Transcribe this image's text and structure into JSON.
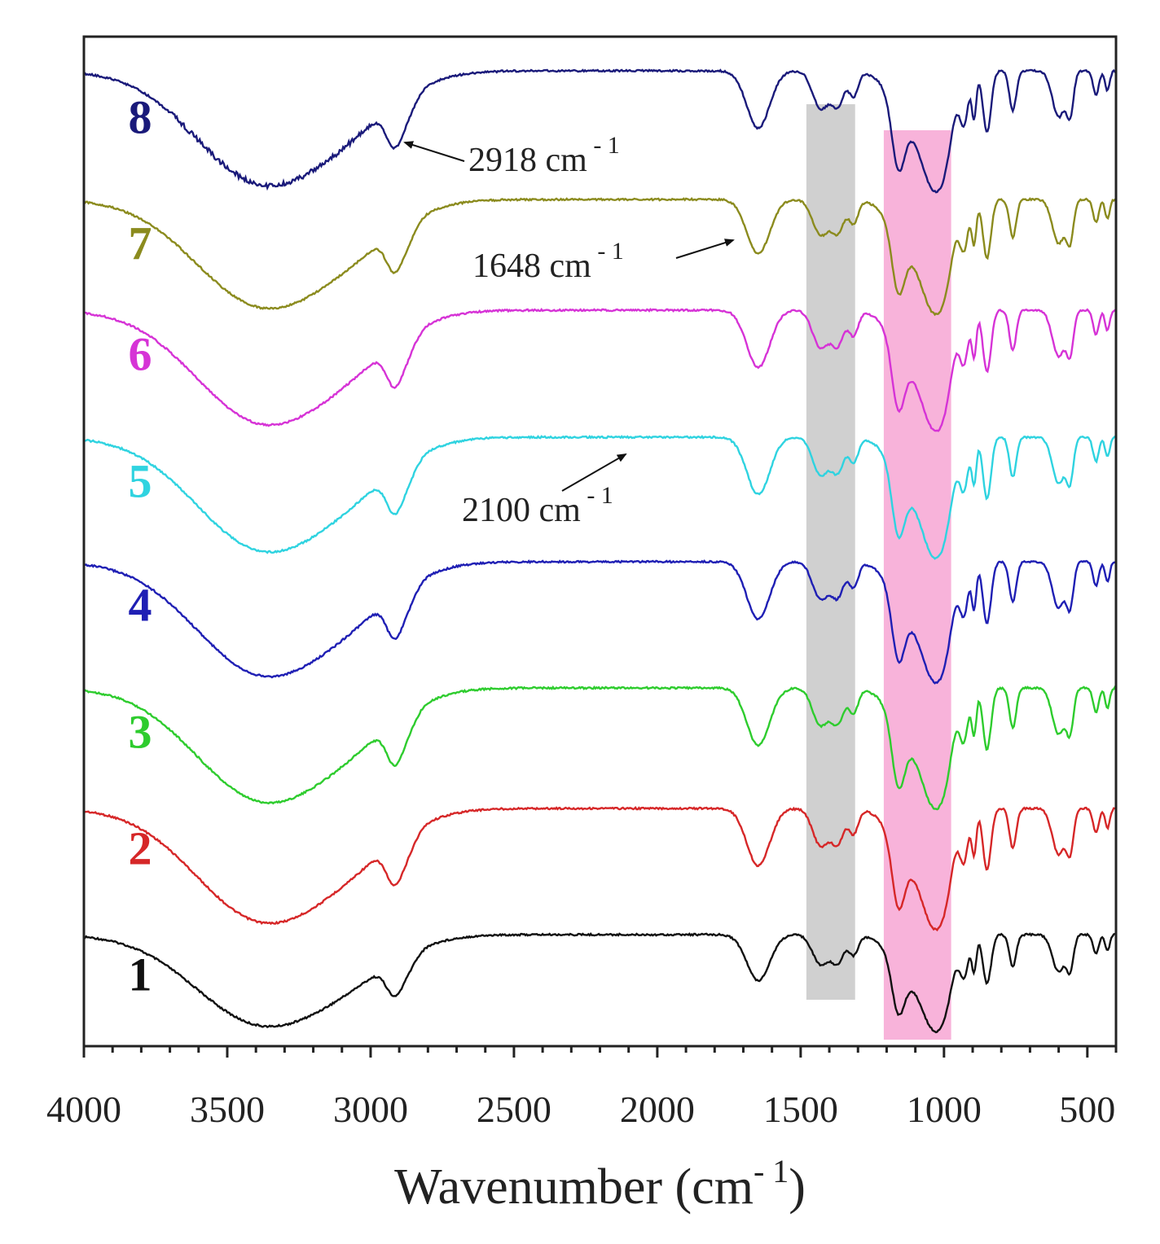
{
  "chart_data": {
    "type": "line",
    "title": "",
    "xlabel": "Wavenumber (cm",
    "xlabel_exponent": "- 1",
    "xlabel_close": ")",
    "ylabel": "",
    "xlim": [
      4000,
      400
    ],
    "x_reversed": true,
    "y_axis_ticks_shown": false,
    "grid": false,
    "x_ticks": [
      4000,
      3500,
      3000,
      2500,
      2000,
      1500,
      1000,
      500
    ],
    "x_tick_labels": [
      "4000",
      "3500",
      "3000",
      "2500",
      "2000",
      "1500",
      "1000",
      "500"
    ],
    "series": [
      {
        "name": "1",
        "label": "1",
        "color": "#111111",
        "baseline_offset": 0,
        "abs_scale": 0.8
      },
      {
        "name": "2",
        "label": "2",
        "color": "#d62728",
        "baseline_offset": 1,
        "abs_scale": 1.0
      },
      {
        "name": "3",
        "label": "3",
        "color": "#2ecc2e",
        "baseline_offset": 2,
        "abs_scale": 1.0
      },
      {
        "name": "4",
        "label": "4",
        "color": "#1f1fb4",
        "baseline_offset": 3,
        "abs_scale": 1.0
      },
      {
        "name": "5",
        "label": "5",
        "color": "#2fd3e0",
        "baseline_offset": 4,
        "abs_scale": 1.0
      },
      {
        "name": "6",
        "label": "6",
        "color": "#d633d6",
        "baseline_offset": 5,
        "abs_scale": 1.0
      },
      {
        "name": "7",
        "label": "7",
        "color": "#8b8b1e",
        "baseline_offset": 6,
        "abs_scale": 0.95
      },
      {
        "name": "8",
        "label": "8",
        "color": "#1a1a7a",
        "baseline_offset": 7,
        "abs_scale": 1.0
      }
    ],
    "highlight_bands": [
      {
        "name": "gray-band",
        "from": 1480,
        "to": 1310,
        "color": "#c8c8c8"
      },
      {
        "name": "pink-band",
        "from": 1210,
        "to": 975,
        "color": "#f7a6d3"
      }
    ],
    "annotations": [
      {
        "text": "2918 cm",
        "sup": "- 1",
        "x": 2918,
        "series": "8"
      },
      {
        "text": "1648 cm",
        "sup": "- 1",
        "x": 1648,
        "series": "7"
      },
      {
        "text": "2100 cm",
        "sup": "- 1",
        "x": 2100,
        "series": "5"
      }
    ]
  }
}
